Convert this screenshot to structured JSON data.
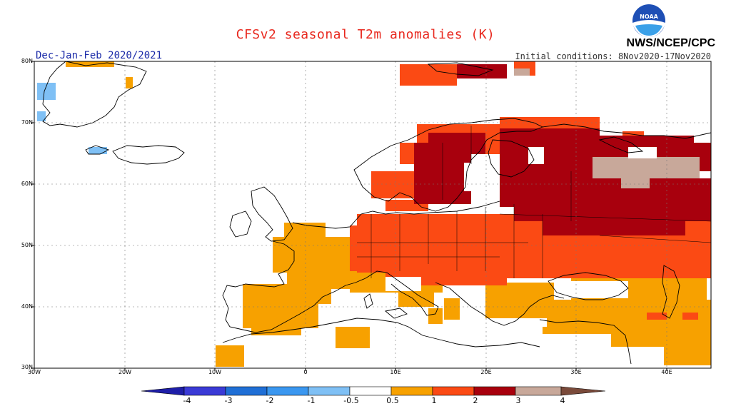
{
  "header": {
    "title": "CFSv2 seasonal T2m anomalies (K)",
    "season": "Dec-Jan-Feb 2020/2021",
    "initial_conditions": "Initial conditions: 8Nov2020-17Nov2020",
    "agency": "NWS/NCEP/CPC",
    "logo_text": "NOAA"
  },
  "map": {
    "lat_labels": [
      "80N",
      "70N",
      "60N",
      "50N",
      "40N",
      "30N"
    ],
    "lon_labels": [
      "30W",
      "20W",
      "10W",
      "0",
      "10E",
      "20E",
      "30E",
      "40E"
    ],
    "lat_range": [
      30,
      80
    ],
    "lon_range": [
      -30,
      45
    ]
  },
  "legend": {
    "labels": [
      "-4",
      "-3",
      "-2",
      "-1",
      "-0.5",
      "0.5",
      "1",
      "2",
      "3",
      "4"
    ],
    "colors": [
      "#1e1ea8",
      "#3a3ad6",
      "#1f6fd6",
      "#3a97f0",
      "#7fc0f5",
      "#ffffff",
      "#f7a100",
      "#fb4a14",
      "#a8000d",
      "#c8a89a",
      "#7a4a3a"
    ]
  },
  "colors": {
    "title": "#e8281e",
    "season": "#1a2aa8",
    "anom_05_1": "#f7a100",
    "anom_1_2": "#fb4a14",
    "anom_2_3": "#a8000d",
    "anom_3_4": "#c8a89a",
    "anom_neg": "#7fc0f5"
  }
}
